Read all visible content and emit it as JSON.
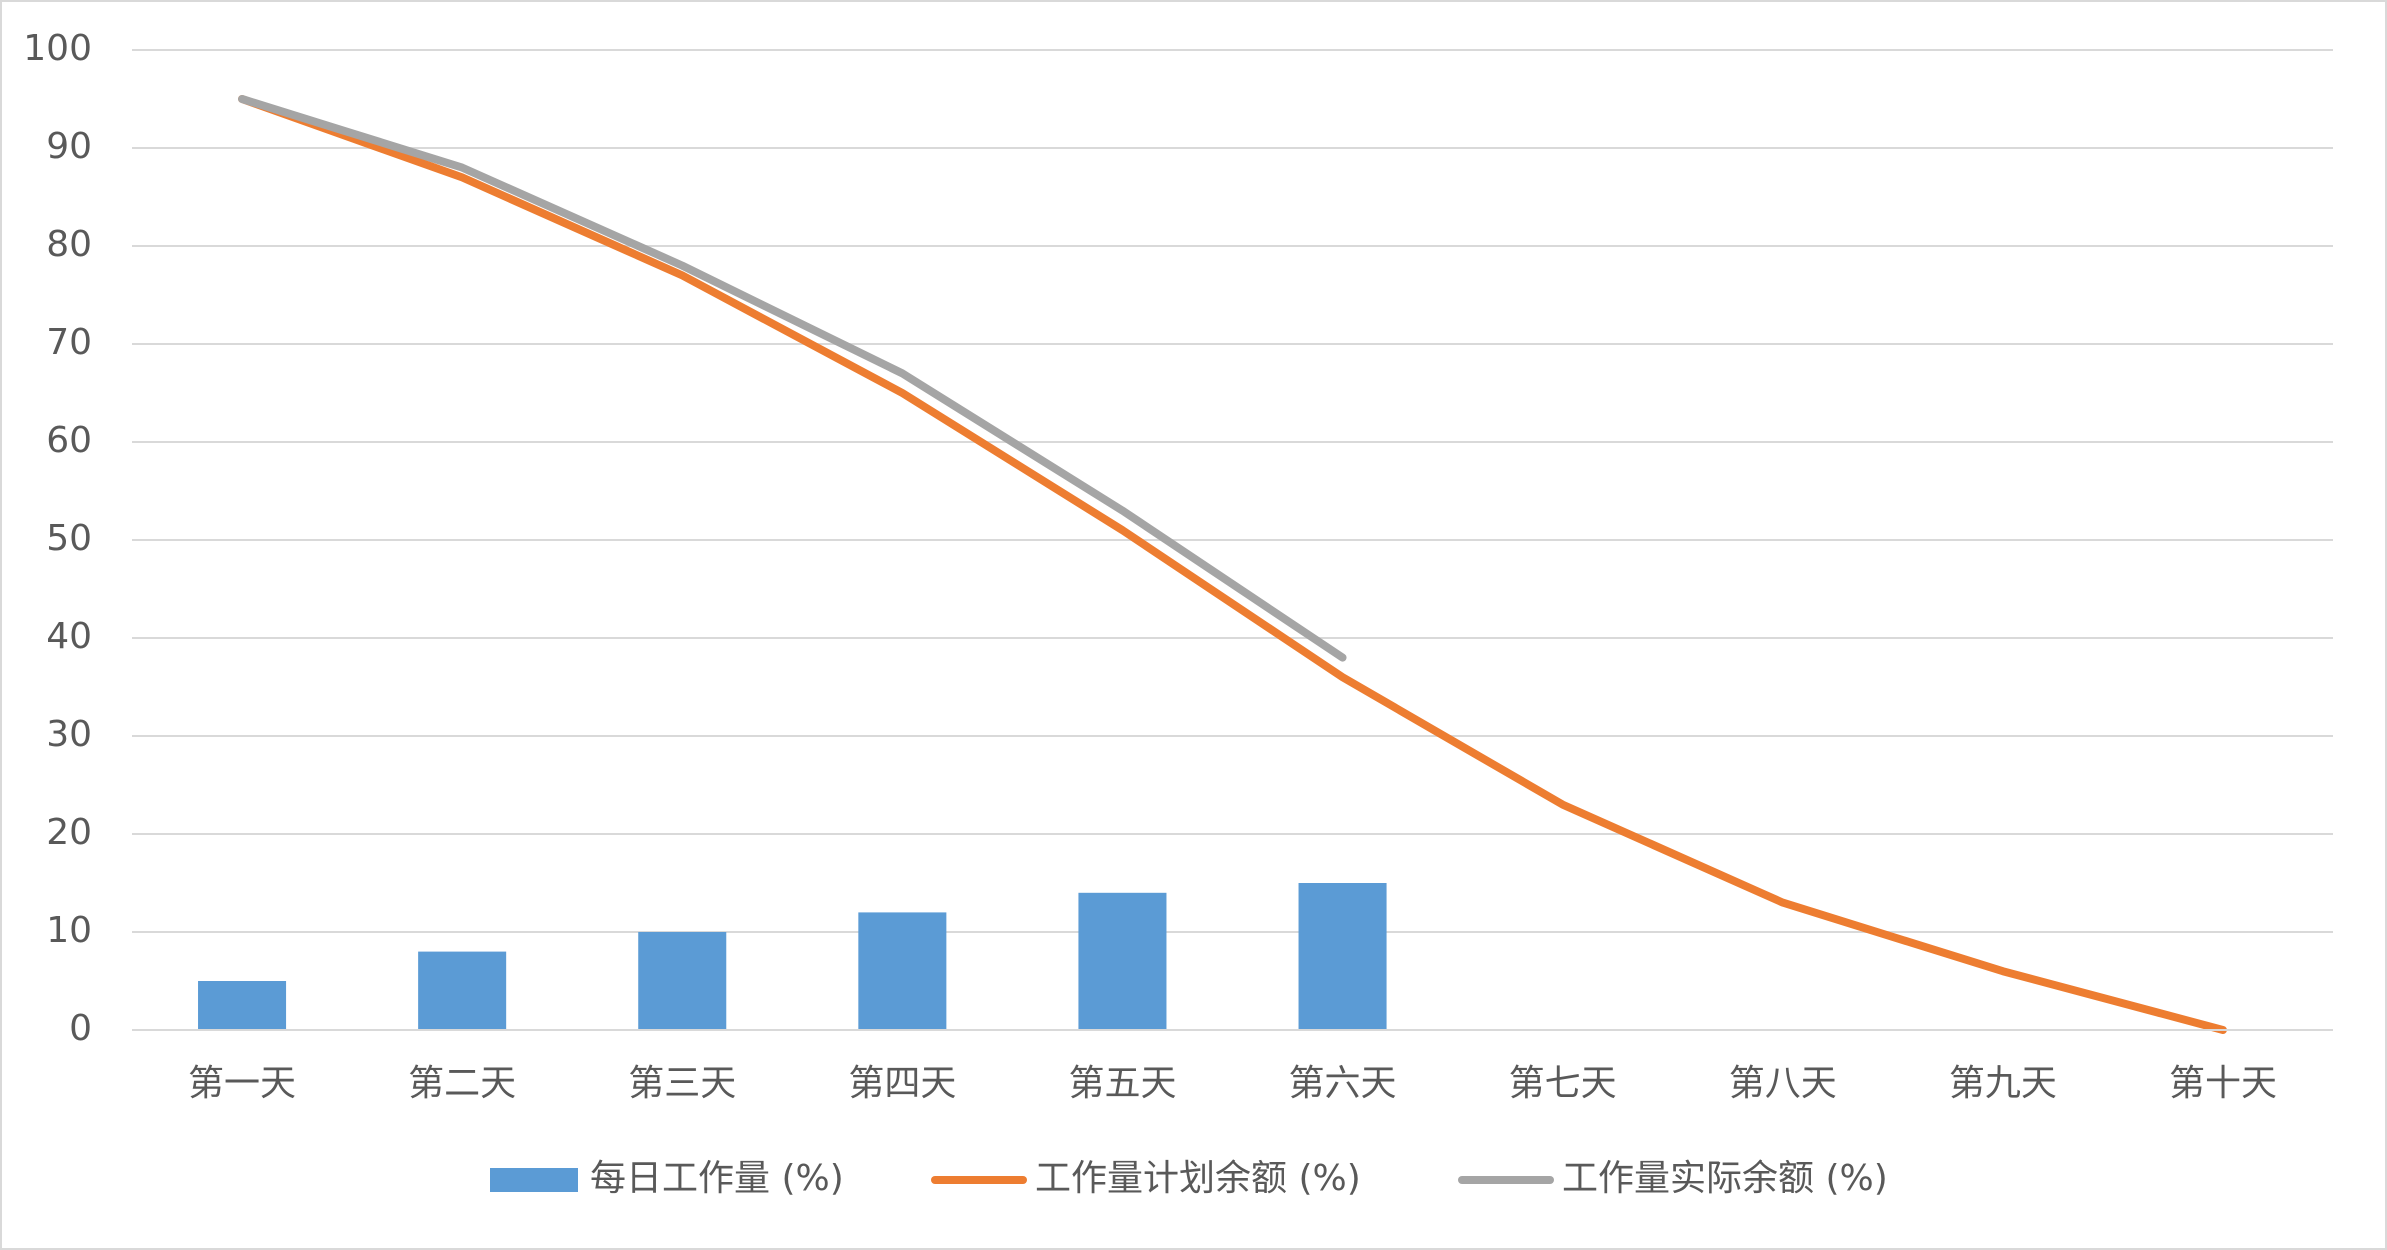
{
  "chart_data": {
    "type": "combo",
    "categories": [
      "第一天",
      "第二天",
      "第三天",
      "第四天",
      "第五天",
      "第六天",
      "第七天",
      "第八天",
      "第九天",
      "第十天"
    ],
    "series": [
      {
        "name": "每日工作量 (%)",
        "type": "bar",
        "color": "#5b9bd5",
        "values": [
          5,
          8,
          10,
          12,
          14,
          15,
          null,
          null,
          null,
          null
        ]
      },
      {
        "name": "工作量计划余额 (%)",
        "type": "line",
        "color": "#ed7d31",
        "values": [
          95,
          87,
          77,
          65,
          51,
          36,
          23,
          13,
          6,
          0
        ]
      },
      {
        "name": "工作量实际余额 (%)",
        "type": "line",
        "color": "#a5a5a5",
        "values": [
          95,
          88,
          78,
          67,
          53,
          38,
          null,
          null,
          null,
          null
        ]
      }
    ],
    "ylim": [
      0,
      100
    ],
    "yticks": [
      0,
      10,
      20,
      30,
      40,
      50,
      60,
      70,
      80,
      90,
      100
    ],
    "grid": true,
    "legend": "bottom"
  }
}
